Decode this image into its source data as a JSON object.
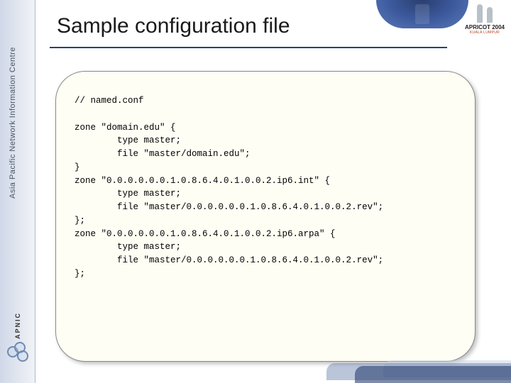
{
  "sidebar": {
    "org_vertical": "Asia Pacific Network Information Centre",
    "logo_text": "APNIC"
  },
  "header": {
    "conf_name": "APRICOT 2004",
    "conf_loc": "KUALA LUMPUR"
  },
  "slide": {
    "title": "Sample configuration file",
    "title_color": "#1a1a1a",
    "underline_color": "#2a3f6f",
    "content_bg": "#fefef4"
  },
  "code": {
    "line01": "// named.conf",
    "line02": "",
    "line03": "zone \"domain.edu\" {",
    "line04": "        type master;",
    "line05": "        file \"master/domain.edu\";",
    "line06": "}",
    "line07": "zone \"0.0.0.0.0.0.1.0.8.6.4.0.1.0.0.2.ip6.int\" {",
    "line08": "        type master;",
    "line09": "        file \"master/0.0.0.0.0.0.1.0.8.6.4.0.1.0.0.2.rev\";",
    "line10": "};",
    "line11": "zone \"0.0.0.0.0.0.1.0.8.6.4.0.1.0.0.2.ip6.arpa\" {",
    "line12": "        type master;",
    "line13": "        file \"master/0.0.0.0.0.0.1.0.8.6.4.0.1.0.0.2.rev\";",
    "line14": "};"
  }
}
